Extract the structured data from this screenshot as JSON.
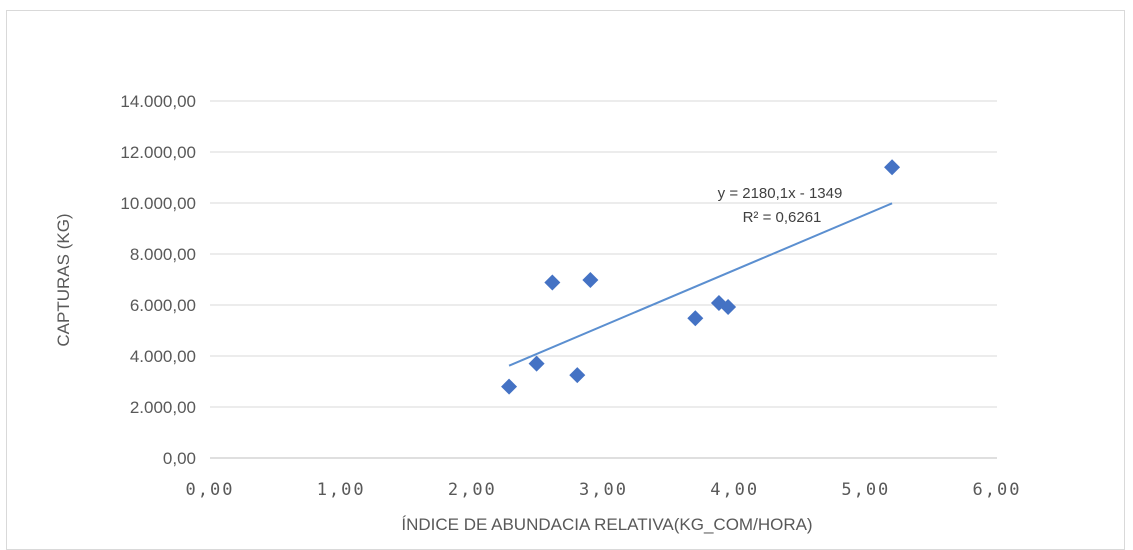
{
  "chart_data": {
    "type": "scatter",
    "title": "",
    "xlabel": "ÍNDICE DE ABUNDACIA RELATIVA(KG_COM/HORA)",
    "ylabel": "CAPTURAS (KG)",
    "xlim": [
      0,
      6
    ],
    "ylim": [
      0,
      14000
    ],
    "x_ticks": [
      "0,00",
      "1,00",
      "2,00",
      "3,00",
      "4,00",
      "5,00",
      "6,00"
    ],
    "y_ticks": [
      "0,00",
      "2.000,00",
      "4.000,00",
      "6.000,00",
      "8.000,00",
      "10.000,00",
      "12.000,00",
      "14.000,00"
    ],
    "grid": "horizontal",
    "legend": "none",
    "series": [
      {
        "points": [
          {
            "x": 2.28,
            "y": 2800
          },
          {
            "x": 2.49,
            "y": 3700
          },
          {
            "x": 2.61,
            "y": 6880
          },
          {
            "x": 2.8,
            "y": 3250
          },
          {
            "x": 2.9,
            "y": 6980
          },
          {
            "x": 3.7,
            "y": 5480
          },
          {
            "x": 3.88,
            "y": 6080
          },
          {
            "x": 3.95,
            "y": 5920
          },
          {
            "x": 5.2,
            "y": 11400
          }
        ]
      }
    ],
    "trendline": {
      "type": "linear",
      "slope": 2180.1,
      "intercept": -1349,
      "x_range": [
        2.28,
        5.2
      ],
      "equation_label": "y = 2180,1x - 1349",
      "r2_label": "R² = 0,6261"
    },
    "colors": {
      "marker": "#4472c4",
      "trendline": "#5b8fd0",
      "grid": "#d9d9d9",
      "axis_text": "#595959"
    }
  }
}
